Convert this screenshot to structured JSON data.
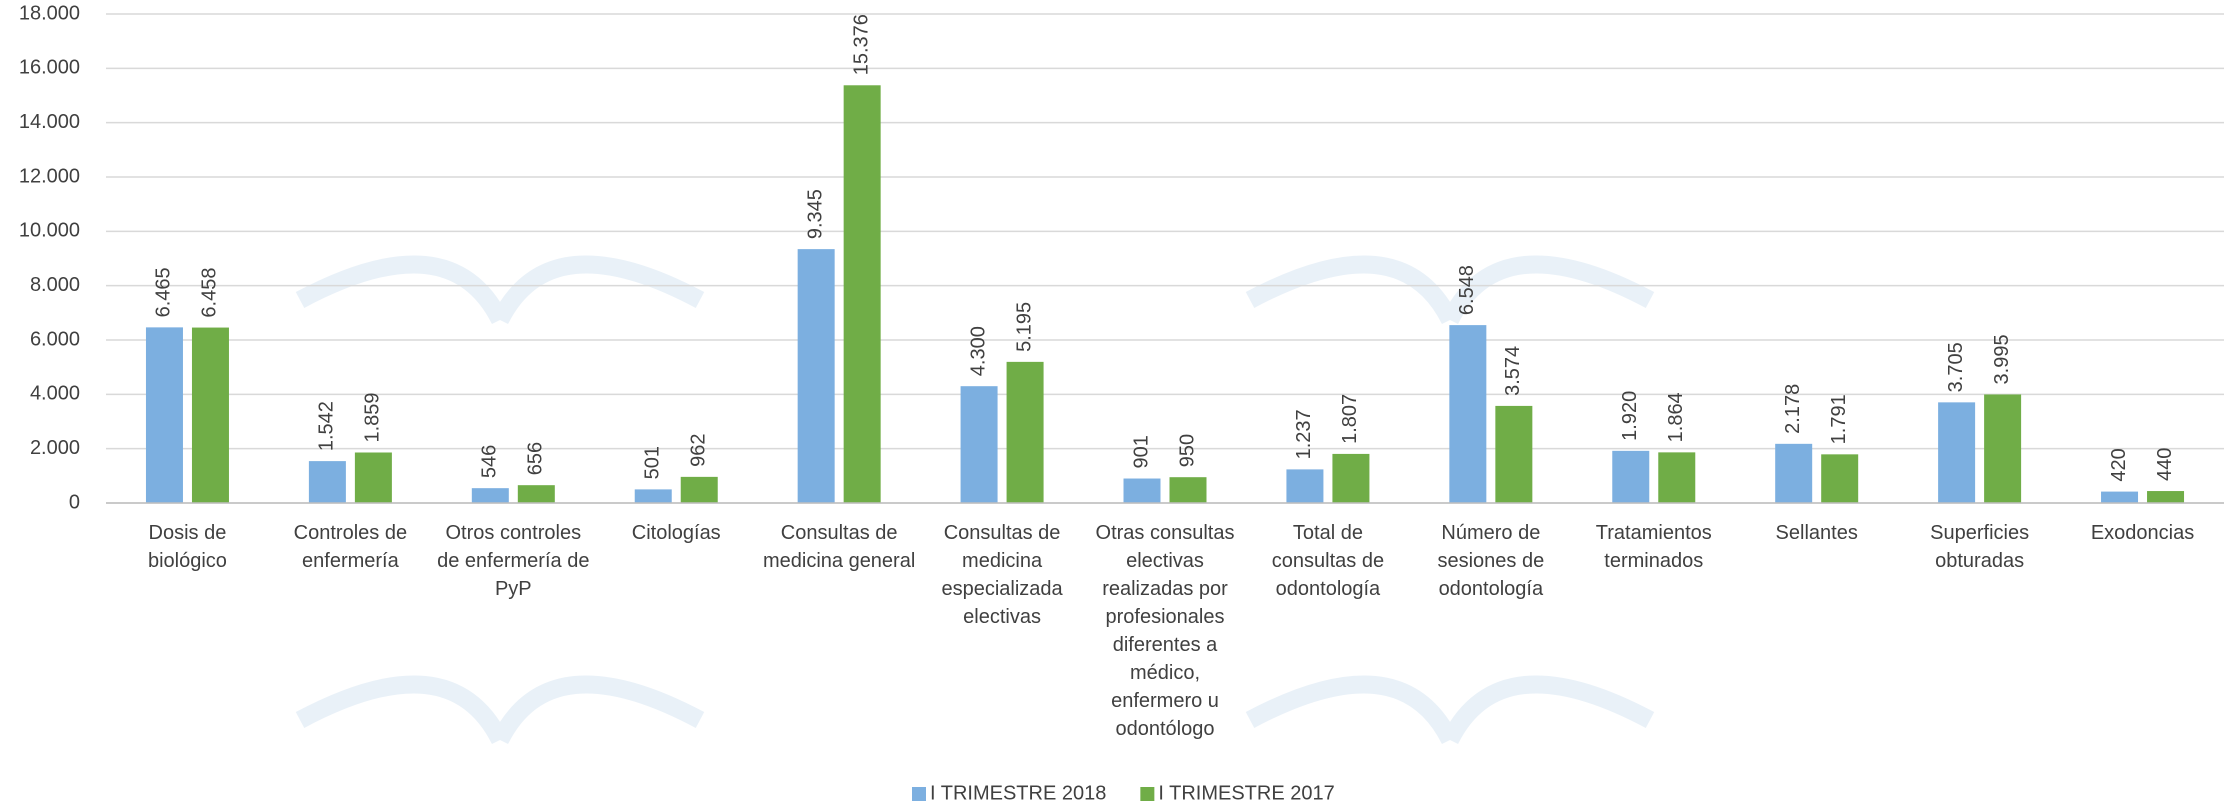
{
  "chart_data": {
    "type": "bar",
    "categories": [
      "Dosis de biológico",
      "Controles de enfermería",
      "Otros controles de enfermería de PyP",
      "Citologías",
      "Consultas de medicina general",
      "Consultas de medicina especializada electivas",
      "Otras consultas electivas realizadas por profesionales diferentes a médico, enfermero u odontólogo",
      "Total de consultas de odontología",
      "Número de sesiones de odontología",
      "Tratamientos terminados",
      "Sellantes",
      "Superficies obturadas",
      "Exodoncias"
    ],
    "series": [
      {
        "name": "I TRIMESTRE 2018",
        "color": "#7cafe0",
        "values": [
          6465,
          1542,
          546,
          501,
          9345,
          4300,
          901,
          1237,
          6548,
          1920,
          2178,
          3705,
          420
        ],
        "value_labels": [
          "6.465",
          "1.542",
          "546",
          "501",
          "9.345",
          "4.300",
          "901",
          "1.237",
          "6.548",
          "1.920",
          "2.178",
          "3.705",
          "420"
        ]
      },
      {
        "name": "I TRIMESTRE 2017",
        "color": "#70ad47",
        "values": [
          6458,
          1859,
          656,
          962,
          15376,
          5195,
          950,
          1807,
          3574,
          1864,
          1791,
          3995,
          440
        ],
        "value_labels": [
          "6.458",
          "1.859",
          "656",
          "962",
          "15.376",
          "5.195",
          "950",
          "1.807",
          "3.574",
          "1.864",
          "1.791",
          "3.995",
          "440"
        ]
      }
    ],
    "ylim": [
      0,
      18000
    ],
    "yticks": [
      0,
      {
        "value": 2000,
        "label": "2.000"
      },
      {
        "value": 4000,
        "label": "4.000"
      },
      {
        "value": 6000,
        "label": "6.000"
      },
      {
        "value": 8000,
        "label": "8.000"
      },
      {
        "value": 10000,
        "label": "10.000"
      },
      {
        "value": 12000,
        "label": "12.000"
      },
      {
        "value": 14000,
        "label": "14.000"
      },
      {
        "value": 16000,
        "label": "16.000"
      },
      {
        "value": 18000,
        "label": "18.000"
      }
    ],
    "grid": true,
    "legend": "bottom"
  }
}
